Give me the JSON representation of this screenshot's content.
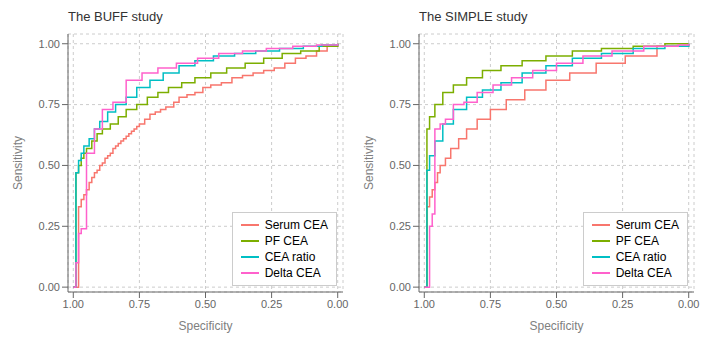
{
  "chart_data": [
    {
      "type": "step",
      "title": "The BUFF study",
      "x_label": "Specificity",
      "y_label": "Sensitivity",
      "xlim": [
        1.02,
        -0.02
      ],
      "ylim": [
        -0.02,
        1.04
      ],
      "xticks": [
        {
          "value": 1.0,
          "label": "1.00"
        },
        {
          "value": 0.75,
          "label": "0.75"
        },
        {
          "value": 0.5,
          "label": "0.50"
        },
        {
          "value": 0.25,
          "label": "0.25"
        },
        {
          "value": 0.0,
          "label": "0.00"
        }
      ],
      "yticks": [
        {
          "value": 0.0,
          "label": "0.00"
        },
        {
          "value": 0.25,
          "label": "0.25"
        },
        {
          "value": 0.5,
          "label": "0.50"
        },
        {
          "value": 0.75,
          "label": "0.75"
        },
        {
          "value": 1.0,
          "label": "1.00"
        }
      ],
      "grid": true,
      "legend": "lower right",
      "series": [
        {
          "name": "Serum CEA",
          "color": "#F8766D",
          "x": [
            1.0,
            0.98,
            0.97,
            0.96,
            0.95,
            0.94,
            0.93,
            0.92,
            0.91,
            0.9,
            0.89,
            0.88,
            0.87,
            0.86,
            0.85,
            0.84,
            0.83,
            0.82,
            0.81,
            0.8,
            0.79,
            0.78,
            0.77,
            0.76,
            0.75,
            0.73,
            0.71,
            0.69,
            0.67,
            0.65,
            0.62,
            0.6,
            0.57,
            0.54,
            0.51,
            0.48,
            0.44,
            0.4,
            0.36,
            0.32,
            0.28,
            0.24,
            0.2,
            0.16,
            0.12,
            0.08,
            0.04,
            0.0
          ],
          "values": [
            0.0,
            0.33,
            0.36,
            0.38,
            0.4,
            0.43,
            0.45,
            0.47,
            0.48,
            0.5,
            0.51,
            0.53,
            0.54,
            0.55,
            0.57,
            0.58,
            0.59,
            0.6,
            0.61,
            0.62,
            0.63,
            0.64,
            0.65,
            0.66,
            0.67,
            0.69,
            0.71,
            0.72,
            0.73,
            0.74,
            0.76,
            0.78,
            0.79,
            0.8,
            0.82,
            0.83,
            0.84,
            0.86,
            0.87,
            0.88,
            0.89,
            0.9,
            0.92,
            0.94,
            0.95,
            0.97,
            0.99,
            1.0
          ]
        },
        {
          "name": "PF CEA",
          "color": "#7CAE00",
          "x": [
            1.0,
            0.99,
            0.98,
            0.97,
            0.96,
            0.95,
            0.93,
            0.91,
            0.89,
            0.86,
            0.83,
            0.8,
            0.76,
            0.72,
            0.68,
            0.64,
            0.59,
            0.54,
            0.48,
            0.42,
            0.35,
            0.28,
            0.21,
            0.14,
            0.07,
            0.0
          ],
          "values": [
            0.0,
            0.47,
            0.5,
            0.53,
            0.55,
            0.57,
            0.6,
            0.63,
            0.65,
            0.67,
            0.7,
            0.73,
            0.75,
            0.78,
            0.8,
            0.82,
            0.84,
            0.86,
            0.88,
            0.9,
            0.92,
            0.94,
            0.96,
            0.97,
            0.99,
            1.0
          ]
        },
        {
          "name": "CEA ratio",
          "color": "#00BFC4",
          "x": [
            1.0,
            0.99,
            0.98,
            0.97,
            0.96,
            0.94,
            0.92,
            0.9,
            0.87,
            0.84,
            0.8,
            0.76,
            0.71,
            0.66,
            0.6,
            0.54,
            0.47,
            0.39,
            0.31,
            0.22,
            0.13,
            0.06,
            0.0
          ],
          "values": [
            0.0,
            0.47,
            0.52,
            0.55,
            0.58,
            0.61,
            0.65,
            0.68,
            0.72,
            0.75,
            0.78,
            0.82,
            0.85,
            0.88,
            0.91,
            0.93,
            0.95,
            0.96,
            0.97,
            0.98,
            0.99,
            0.995,
            1.0
          ]
        },
        {
          "name": "Delta CEA",
          "color": "#FF61CC",
          "x": [
            1.0,
            0.99,
            0.98,
            0.97,
            0.95,
            0.92,
            0.89,
            0.85,
            0.8,
            0.74,
            0.68,
            0.61,
            0.53,
            0.45,
            0.36,
            0.27,
            0.17,
            0.08,
            0.0
          ],
          "values": [
            0.0,
            0.1,
            0.22,
            0.24,
            0.55,
            0.65,
            0.73,
            0.76,
            0.85,
            0.88,
            0.9,
            0.92,
            0.94,
            0.96,
            0.97,
            0.98,
            0.99,
            0.995,
            1.0
          ]
        }
      ]
    },
    {
      "type": "step",
      "title": "The SIMPLE study",
      "x_label": "Specificity",
      "y_label": "Sensitivity",
      "xlim": [
        1.02,
        -0.02
      ],
      "ylim": [
        -0.02,
        1.04
      ],
      "xticks": [
        {
          "value": 1.0,
          "label": "1.00"
        },
        {
          "value": 0.75,
          "label": "0.75"
        },
        {
          "value": 0.5,
          "label": "0.50"
        },
        {
          "value": 0.25,
          "label": "0.25"
        },
        {
          "value": 0.0,
          "label": "0.00"
        }
      ],
      "yticks": [
        {
          "value": 0.0,
          "label": "0.00"
        },
        {
          "value": 0.25,
          "label": "0.25"
        },
        {
          "value": 0.5,
          "label": "0.50"
        },
        {
          "value": 0.75,
          "label": "0.75"
        },
        {
          "value": 1.0,
          "label": "1.00"
        }
      ],
      "grid": true,
      "legend": "lower right",
      "series": [
        {
          "name": "Serum CEA",
          "color": "#F8766D",
          "x": [
            1.0,
            0.99,
            0.98,
            0.97,
            0.96,
            0.95,
            0.94,
            0.92,
            0.9,
            0.87,
            0.84,
            0.8,
            0.75,
            0.69,
            0.62,
            0.54,
            0.45,
            0.35,
            0.24,
            0.12,
            0.0
          ],
          "values": [
            0.0,
            0.33,
            0.37,
            0.4,
            0.43,
            0.47,
            0.5,
            0.53,
            0.57,
            0.61,
            0.65,
            0.69,
            0.73,
            0.77,
            0.81,
            0.85,
            0.88,
            0.92,
            0.95,
            0.99,
            1.0
          ]
        },
        {
          "name": "PF CEA",
          "color": "#7CAE00",
          "x": [
            1.0,
            0.99,
            0.98,
            0.96,
            0.93,
            0.89,
            0.84,
            0.78,
            0.71,
            0.63,
            0.54,
            0.44,
            0.33,
            0.21,
            0.09,
            0.0
          ],
          "values": [
            0.0,
            0.65,
            0.7,
            0.75,
            0.8,
            0.83,
            0.86,
            0.89,
            0.91,
            0.93,
            0.95,
            0.97,
            0.98,
            0.99,
            1.0,
            1.0
          ]
        },
        {
          "name": "CEA ratio",
          "color": "#00BFC4",
          "x": [
            1.0,
            0.99,
            0.98,
            0.96,
            0.93,
            0.89,
            0.84,
            0.78,
            0.71,
            0.63,
            0.54,
            0.44,
            0.33,
            0.21,
            0.09,
            0.0
          ],
          "values": [
            0.0,
            0.48,
            0.54,
            0.6,
            0.67,
            0.73,
            0.78,
            0.81,
            0.84,
            0.88,
            0.91,
            0.94,
            0.96,
            0.98,
            0.99,
            1.0
          ]
        },
        {
          "name": "Delta CEA",
          "color": "#FF61CC",
          "x": [
            1.0,
            0.99,
            0.98,
            0.97,
            0.96,
            0.94,
            0.92,
            0.89,
            0.85,
            0.8,
            0.74,
            0.67,
            0.59,
            0.5,
            0.4,
            0.29,
            0.17,
            0.04,
            0.0
          ],
          "values": [
            0.0,
            0.0,
            0.25,
            0.3,
            0.65,
            0.67,
            0.69,
            0.75,
            0.76,
            0.8,
            0.83,
            0.86,
            0.89,
            0.92,
            0.95,
            0.97,
            0.99,
            0.995,
            1.0
          ]
        }
      ]
    }
  ]
}
